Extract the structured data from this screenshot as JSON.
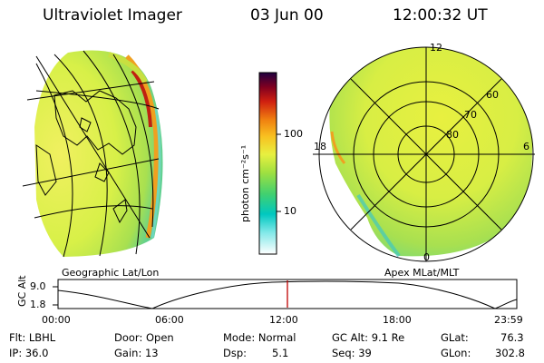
{
  "header": {
    "instrument": "Ultraviolet Imager",
    "date": "03 Jun 00",
    "time": "12:00:32 UT"
  },
  "left_panel": {
    "label": "Geographic Lat/Lon"
  },
  "right_panel": {
    "label": "Apex MLat/MLT",
    "mlt_labels": {
      "top": "12",
      "left": "18",
      "right": "6",
      "bottom": "0"
    },
    "lat_labels": [
      "60",
      "70",
      "80"
    ]
  },
  "colorbar": {
    "unit_label": "photon cm⁻²s⁻¹",
    "ticks": [
      "100",
      "10"
    ],
    "scale": "log",
    "colors": [
      "#ffffff",
      "#80e8e8",
      "#00c8c0",
      "#40d070",
      "#a0e040",
      "#e8f040",
      "#f8c020",
      "#f08010",
      "#d02010",
      "#800020",
      "#200040"
    ]
  },
  "timeline": {
    "ylabel": "GC Alt",
    "y_ticks": [
      "9.0",
      "1.8"
    ],
    "x_ticks": [
      "00:00",
      "06:00",
      "12:00",
      "18:00",
      "23:59"
    ],
    "current_time_fraction": 0.5,
    "marker_color": "#c00000"
  },
  "info": {
    "flt": "Flt: LBHL",
    "ip": "IP: 36.0",
    "door": "Door: Open",
    "gain": "Gain: 13",
    "mode": "Mode: Normal",
    "dsp_label": "Dsp:",
    "dsp_value": "5.1",
    "gcalt": "GC Alt: 9.1 Re",
    "seq": "Seq: 39",
    "glat_label": "GLat:",
    "glat_value": "76.3",
    "glon_label": "GLon:",
    "glon_value": "302.8"
  }
}
